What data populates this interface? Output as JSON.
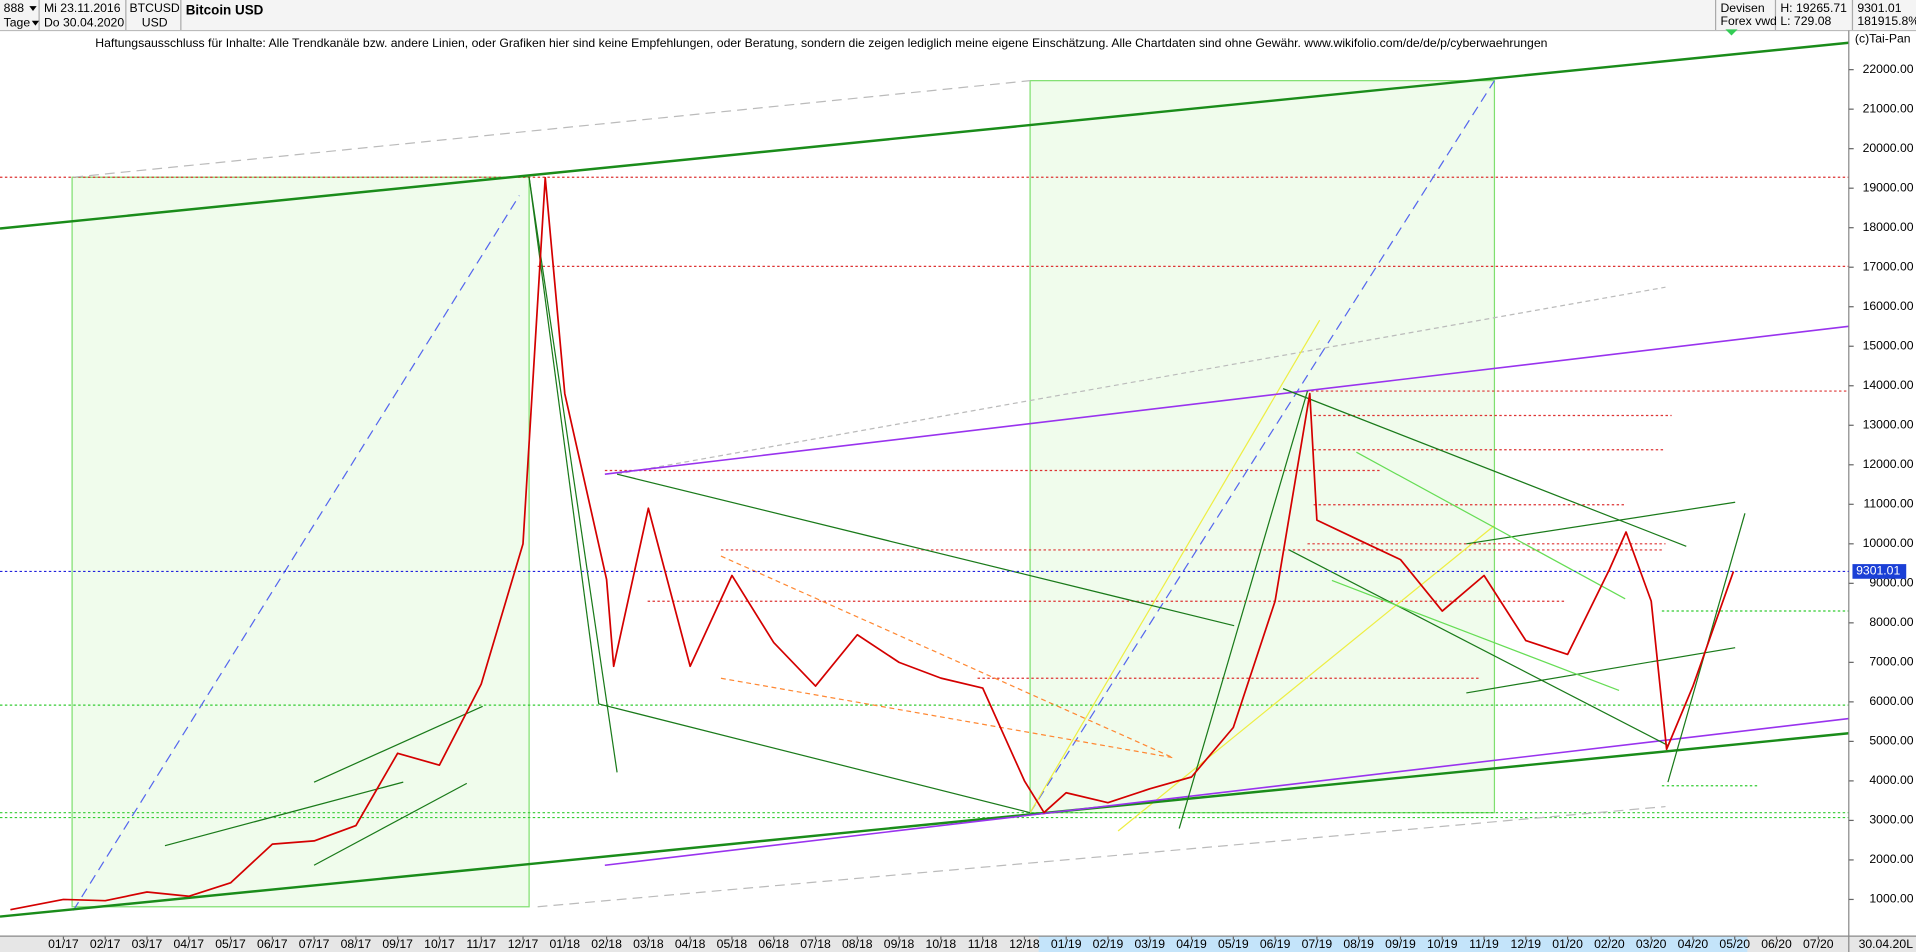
{
  "header": {
    "id": "888",
    "period": "Tage",
    "start": "Mi 23.11.2016",
    "end": "Do 30.04.2020",
    "symbol": "BTCUSD",
    "currency": "USD",
    "market": "Devisen",
    "source": "Forex vwd",
    "high": "H: 19265.71",
    "low": "L: 729.08",
    "change": "181915.8%",
    "disclaimer": "Haftungsausschluss für Inhalte: Alle Trendkanäle bzw. andere Linien, oder Grafiken hier sind keine Empfehlungen, oder Beratung, sondern die zeigen lediglich meine eigene Einschätzung. Alle Chartdaten sind ohne Gewähr.  www.wikifolio.com/de/de/p/cyberwaehrungen",
    "copyright": "(c)Tai-Pan",
    "axis_end": "30.04.20",
    "scale": "L"
  },
  "chart_data": {
    "type": "line",
    "title": "Bitcoin USD",
    "grid": false,
    "last_price": 9301.01,
    "x": [
      -1.27,
      0,
      1,
      2,
      3,
      4,
      5,
      6,
      7,
      8,
      9,
      10,
      11,
      11.53,
      12,
      13,
      13.17,
      14,
      15,
      16,
      17,
      18,
      19,
      20,
      21,
      22,
      23,
      23.47,
      24,
      25,
      26,
      27,
      28,
      29,
      29.83,
      30,
      31,
      32,
      33,
      34,
      35,
      36,
      37,
      37.4,
      38,
      38.37,
      39,
      39.97
    ],
    "series": [
      {
        "color": "#d40000",
        "values": [
          740,
          1000,
          970,
          1190,
          1080,
          1420,
          2400,
          2480,
          2870,
          4700,
          4400,
          6450,
          10000,
          19265,
          13800,
          9100,
          6900,
          10900,
          6900,
          9200,
          7500,
          6400,
          7700,
          7000,
          6600,
          6350,
          4000,
          3200,
          3700,
          3450,
          3800,
          4100,
          5350,
          8550,
          13800,
          10600,
          10100,
          9600,
          8300,
          9200,
          7550,
          7200,
          9350,
          10300,
          8550,
          4800,
          6400,
          9301.01
        ]
      }
    ],
    "xlim": [
      -1.43,
      42.73
    ],
    "xticks": [
      {
        "value": 0,
        "label": "01/17"
      },
      {
        "value": 1,
        "label": "02/17"
      },
      {
        "value": 2,
        "label": "03/17"
      },
      {
        "value": 3,
        "label": "04/17"
      },
      {
        "value": 4,
        "label": "05/17"
      },
      {
        "value": 5,
        "label": "06/17"
      },
      {
        "value": 6,
        "label": "07/17"
      },
      {
        "value": 7,
        "label": "08/17"
      },
      {
        "value": 8,
        "label": "09/17"
      },
      {
        "value": 9,
        "label": "10/17"
      },
      {
        "value": 10,
        "label": "11/17"
      },
      {
        "value": 11,
        "label": "12/17"
      },
      {
        "value": 12,
        "label": "01/18"
      },
      {
        "value": 13,
        "label": "02/18"
      },
      {
        "value": 14,
        "label": "03/18"
      },
      {
        "value": 15,
        "label": "04/18"
      },
      {
        "value": 16,
        "label": "05/18"
      },
      {
        "value": 17,
        "label": "06/18"
      },
      {
        "value": 18,
        "label": "07/18"
      },
      {
        "value": 19,
        "label": "08/18"
      },
      {
        "value": 20,
        "label": "09/18"
      },
      {
        "value": 21,
        "label": "10/18"
      },
      {
        "value": 22,
        "label": "11/18"
      },
      {
        "value": 23,
        "label": "12/18"
      },
      {
        "value": 24,
        "label": "01/19"
      },
      {
        "value": 25,
        "label": "02/19"
      },
      {
        "value": 26,
        "label": "03/19"
      },
      {
        "value": 27,
        "label": "04/19"
      },
      {
        "value": 28,
        "label": "05/19"
      },
      {
        "value": 29,
        "label": "06/19"
      },
      {
        "value": 30,
        "label": "07/19"
      },
      {
        "value": 31,
        "label": "08/19"
      },
      {
        "value": 32,
        "label": "09/19"
      },
      {
        "value": 33,
        "label": "10/19"
      },
      {
        "value": 34,
        "label": "11/19"
      },
      {
        "value": 35,
        "label": "12/19"
      },
      {
        "value": 36,
        "label": "01/20"
      },
      {
        "value": 37,
        "label": "02/20"
      },
      {
        "value": 38,
        "label": "03/20"
      },
      {
        "value": 39,
        "label": "04/20"
      },
      {
        "value": 40,
        "label": "05/20"
      },
      {
        "value": 41,
        "label": "06/20"
      },
      {
        "value": 42,
        "label": "07/20"
      }
    ],
    "ylim": [
      72,
      23144
    ],
    "yticks": [
      {
        "value": 1000,
        "label": "1000.00"
      },
      {
        "value": 2000,
        "label": "2000.00"
      },
      {
        "value": 3000,
        "label": "3000.00"
      },
      {
        "value": 4000,
        "label": "4000.00"
      },
      {
        "value": 5000,
        "label": "5000.00"
      },
      {
        "value": 6000,
        "label": "6000.00"
      },
      {
        "value": 7000,
        "label": "7000.00"
      },
      {
        "value": 8000,
        "label": "8000.00"
      },
      {
        "value": 9000,
        "label": "9000.00"
      },
      {
        "value": 10000,
        "label": "10000.00"
      },
      {
        "value": 11000,
        "label": "11000.00"
      },
      {
        "value": 12000,
        "label": "12000.00"
      },
      {
        "value": 13000,
        "label": "13000.00"
      },
      {
        "value": 14000,
        "label": "14000.00"
      },
      {
        "value": 15000,
        "label": "15000.00"
      },
      {
        "value": 16000,
        "label": "16000.00"
      },
      {
        "value": 17000,
        "label": "17000.00"
      },
      {
        "value": 18000,
        "label": "18000.00"
      },
      {
        "value": 19000,
        "label": "19000.00"
      },
      {
        "value": 20000,
        "label": "20000.00"
      },
      {
        "value": 21000,
        "label": "21000.00"
      },
      {
        "value": 22000,
        "label": "22000.00"
      }
    ]
  }
}
